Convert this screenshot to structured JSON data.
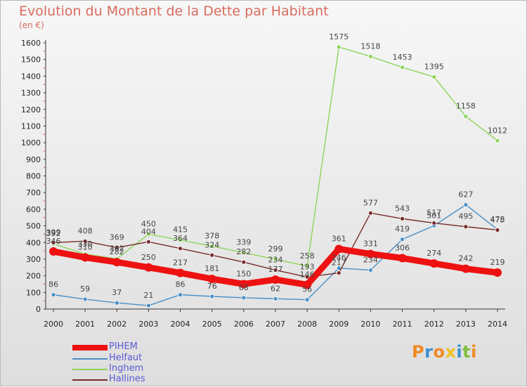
{
  "chart_data": {
    "type": "line",
    "title": "Evolution du Montant de la Dette par Habitant",
    "subtitle": "(en €)",
    "xlabel": "",
    "ylabel": "",
    "ylim": [
      0,
      1600
    ],
    "yticks": [
      0,
      100,
      200,
      300,
      400,
      500,
      600,
      700,
      800,
      900,
      1000,
      1100,
      1200,
      1300,
      1400,
      1500,
      1600
    ],
    "grid": false,
    "legend_position": "bottom-left",
    "x": [
      "2000",
      "2001",
      "2002",
      "2003",
      "2004",
      "2005",
      "2006",
      "2007",
      "2008",
      "2009",
      "2010",
      "2011",
      "2012",
      "2013",
      "2014"
    ],
    "series": [
      {
        "name": "Helfaut",
        "color": "#4a90c8",
        "values": [
          86,
          59,
          37,
          21,
          86,
          76,
          68,
          62,
          56,
          246,
          234,
          419,
          501,
          627,
          478
        ],
        "labels": [
          "86",
          "59",
          "37",
          "21",
          "86",
          "76",
          "68",
          "62",
          "56",
          "246",
          "234",
          "419",
          "501",
          "627",
          "478"
        ]
      },
      {
        "name": "Inghem",
        "color": "#8ed45a",
        "values": [
          392,
          330,
          302,
          450,
          415,
          378,
          339,
          299,
          258,
          1575,
          1518,
          1453,
          1395,
          1158,
          1012
        ],
        "labels": [
          "392",
          "330",
          "302",
          "450",
          "415",
          "378",
          "339",
          "299",
          "258",
          "1575",
          "1518",
          "1453",
          "1395",
          "1158",
          "1012"
        ]
      },
      {
        "name": "Hallines",
        "color": "#7a2a2a",
        "values": [
          399,
          408,
          369,
          404,
          364,
          324,
          282,
          234,
          193,
          217,
          577,
          543,
          517,
          495,
          475
        ],
        "labels": [
          "399",
          "408",
          "369",
          "404",
          "364",
          "324",
          "282",
          "234",
          "193",
          "217",
          "577",
          "543",
          "517",
          "495",
          "475"
        ]
      },
      {
        "name": "PIHEM",
        "color": "#ee1111",
        "values": [
          346,
          310,
          282,
          250,
          217,
          181,
          150,
          177,
          146,
          361,
          331,
          306,
          274,
          242,
          219
        ],
        "labels": [
          "346",
          "310",
          "282",
          "250",
          "217",
          "181",
          "150",
          "177",
          "146",
          "361",
          "331",
          "306",
          "274",
          "242",
          "219"
        ]
      }
    ]
  },
  "legend": [
    {
      "name": "PIHEM",
      "color": "#ee1111"
    },
    {
      "name": "Helfaut",
      "color": "#4a90c8"
    },
    {
      "name": "Inghem",
      "color": "#8ed45a"
    },
    {
      "name": "Hallines",
      "color": "#7a2a2a"
    }
  ],
  "logo": {
    "text": "Proxiti",
    "colors": [
      "#f08a24",
      "#3a8fd0",
      "#f08a24",
      "#f0c020",
      "#3a8fd0",
      "#80c040",
      "#f08a24"
    ]
  }
}
